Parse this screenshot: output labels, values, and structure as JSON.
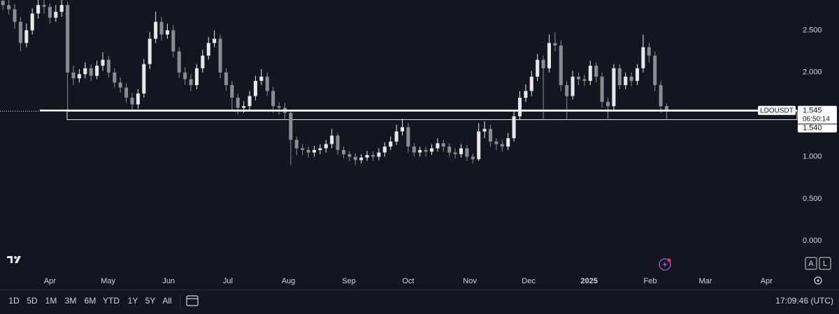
{
  "chart_data": {
    "type": "candlestick",
    "symbol": "LDOUSDT",
    "ylim": [
      -0.37,
      2.86
    ],
    "yticks": [
      {
        "value": 0,
        "label": "0.000"
      },
      {
        "value": 0.5,
        "label": "0.500"
      },
      {
        "value": 1,
        "label": "1.000"
      },
      {
        "value": 1.5,
        "label": "1.500"
      },
      {
        "value": 2,
        "label": "2.000"
      },
      {
        "value": 2.5,
        "label": "2.500"
      }
    ],
    "xlim": [
      -0.5,
      135.2
    ],
    "xticks": [
      {
        "value": 8,
        "label": "Apr"
      },
      {
        "value": 17.9,
        "label": "May"
      },
      {
        "value": 28.2,
        "label": "Jun"
      },
      {
        "value": 38.3,
        "label": "Jul"
      },
      {
        "value": 48.6,
        "label": "Aug"
      },
      {
        "value": 58.9,
        "label": "Sep"
      },
      {
        "value": 69,
        "label": "Oct"
      },
      {
        "value": 79.5,
        "label": "Nov"
      },
      {
        "value": 89.5,
        "label": "Dec"
      },
      {
        "value": 99.8,
        "label": "2025"
      },
      {
        "value": 110.2,
        "label": "Feb"
      },
      {
        "value": 119.6,
        "label": "Mar"
      },
      {
        "value": 130,
        "label": "Apr"
      }
    ],
    "up_color": "#e8e8ea",
    "down_color": "#8a8c93",
    "open": [
      2.85,
      2.8,
      2.75,
      2.6,
      2.35,
      2.5,
      2.7,
      2.8,
      2.78,
      2.65,
      2.72,
      2.8,
      2.0,
      1.93,
      1.98,
      2.05,
      1.96,
      2.08,
      2.15,
      2.0,
      1.88,
      1.82,
      1.7,
      1.62,
      1.75,
      2.1,
      2.4,
      2.6,
      2.45,
      2.5,
      2.25,
      2.0,
      1.92,
      1.85,
      2.05,
      2.2,
      2.35,
      2.4,
      2.0,
      1.85,
      1.7,
      1.58,
      1.6,
      1.72,
      1.9,
      1.95,
      1.78,
      1.6,
      1.58,
      1.52,
      1.2,
      1.1,
      1.08,
      1.05,
      1.08,
      1.1,
      1.15,
      1.25,
      1.08,
      1.03,
      1.0,
      0.96,
      0.99,
      1.02,
      1.0,
      1.05,
      1.12,
      1.18,
      1.3,
      1.35,
      1.12,
      1.05,
      1.08,
      1.06,
      1.1,
      1.16,
      1.12,
      1.05,
      1.03,
      1.1,
      1.0,
      0.97,
      1.3,
      1.33,
      1.18,
      1.15,
      1.12,
      1.22,
      1.48,
      1.7,
      1.78,
      1.95,
      2.15,
      2.05,
      2.35,
      2.32,
      1.85,
      1.72,
      1.95,
      1.92,
      1.9,
      2.08,
      1.95,
      1.65,
      1.6,
      2.05,
      1.85,
      1.95,
      1.9,
      2.05,
      2.3,
      2.2,
      1.85,
      1.6
    ],
    "high": [
      2.9,
      2.86,
      2.81,
      2.66,
      2.58,
      2.76,
      2.86,
      2.86,
      2.82,
      2.8,
      2.88,
      2.84,
      2.08,
      2.04,
      2.12,
      2.1,
      2.14,
      2.24,
      2.2,
      2.05,
      1.94,
      1.87,
      1.76,
      1.8,
      2.16,
      2.48,
      2.72,
      2.66,
      2.58,
      2.56,
      2.3,
      2.06,
      1.98,
      2.1,
      2.27,
      2.42,
      2.5,
      2.45,
      2.05,
      1.9,
      1.75,
      1.66,
      1.78,
      1.96,
      2.04,
      2.0,
      1.83,
      1.65,
      1.64,
      1.55,
      1.24,
      1.15,
      1.12,
      1.13,
      1.15,
      1.2,
      1.33,
      1.28,
      1.12,
      1.07,
      1.04,
      1.03,
      1.07,
      1.06,
      1.1,
      1.17,
      1.24,
      1.38,
      1.45,
      1.4,
      1.16,
      1.12,
      1.12,
      1.15,
      1.22,
      1.2,
      1.16,
      1.1,
      1.15,
      1.14,
      1.04,
      1.4,
      1.42,
      1.38,
      1.22,
      1.2,
      1.28,
      1.55,
      1.78,
      1.86,
      2.02,
      2.22,
      2.2,
      2.45,
      2.48,
      2.38,
      1.9,
      2.02,
      2.0,
      1.97,
      2.14,
      2.12,
      2.0,
      1.7,
      2.1,
      2.1,
      2.0,
      2.0,
      2.1,
      2.45,
      2.35,
      2.25,
      1.9,
      1.63
    ],
    "low": [
      2.74,
      2.69,
      2.52,
      2.25,
      2.3,
      2.45,
      2.64,
      2.7,
      2.58,
      2.6,
      2.66,
      1.55,
      1.85,
      1.88,
      1.93,
      1.9,
      1.92,
      2.02,
      1.94,
      1.82,
      1.76,
      1.64,
      1.55,
      1.57,
      1.7,
      2.04,
      2.35,
      2.38,
      2.4,
      2.18,
      1.94,
      1.85,
      1.78,
      1.8,
      2.0,
      2.15,
      2.3,
      1.93,
      1.78,
      1.55,
      1.5,
      1.52,
      1.55,
      1.67,
      1.85,
      1.72,
      1.52,
      1.5,
      1.45,
      0.9,
      1.02,
      1.02,
      0.99,
      1.0,
      1.03,
      1.05,
      1.1,
      1.02,
      0.98,
      0.95,
      0.9,
      0.92,
      0.95,
      0.95,
      0.96,
      1.0,
      1.08,
      1.14,
      1.25,
      1.05,
      1.0,
      1.0,
      1.0,
      1.02,
      1.06,
      1.06,
      1.0,
      0.98,
      0.99,
      0.95,
      0.92,
      0.95,
      1.22,
      1.12,
      1.08,
      1.06,
      1.08,
      1.18,
      1.44,
      1.65,
      1.72,
      1.9,
      1.44,
      2.0,
      2.25,
      1.78,
      1.44,
      1.68,
      1.85,
      1.84,
      1.85,
      1.88,
      1.58,
      1.44,
      1.55,
      1.8,
      1.8,
      1.84,
      1.85,
      2.0,
      2.12,
      1.78,
      1.52,
      1.44
    ],
    "close": [
      2.8,
      2.75,
      2.6,
      2.35,
      2.5,
      2.7,
      2.8,
      2.78,
      2.65,
      2.72,
      2.8,
      2.0,
      1.93,
      1.98,
      2.05,
      1.96,
      2.08,
      2.15,
      2.0,
      1.88,
      1.82,
      1.7,
      1.62,
      1.75,
      2.1,
      2.4,
      2.6,
      2.45,
      2.5,
      2.25,
      2.0,
      1.92,
      1.85,
      2.05,
      2.2,
      2.35,
      2.4,
      2.0,
      1.85,
      1.7,
      1.58,
      1.6,
      1.72,
      1.9,
      1.95,
      1.78,
      1.6,
      1.58,
      1.52,
      1.2,
      1.1,
      1.08,
      1.05,
      1.08,
      1.1,
      1.15,
      1.25,
      1.08,
      1.03,
      1.0,
      0.96,
      0.99,
      1.02,
      1.0,
      1.05,
      1.12,
      1.18,
      1.3,
      1.35,
      1.12,
      1.05,
      1.08,
      1.06,
      1.1,
      1.16,
      1.12,
      1.05,
      1.03,
      1.1,
      1.0,
      0.97,
      1.3,
      1.33,
      1.18,
      1.15,
      1.12,
      1.22,
      1.48,
      1.7,
      1.78,
      1.95,
      2.15,
      2.05,
      2.35,
      2.32,
      1.85,
      1.72,
      1.95,
      1.92,
      1.9,
      2.08,
      1.95,
      1.65,
      1.6,
      2.05,
      1.85,
      1.95,
      1.9,
      2.05,
      2.3,
      2.2,
      1.85,
      1.6,
      1.545
    ],
    "last_price": 1.545,
    "countdown": "06:50:14",
    "hline": {
      "value": 1.54,
      "label": "1.540"
    },
    "box_bottom": 1.44
  },
  "toolbar": {
    "ranges": [
      "1D",
      "5D",
      "1M",
      "3M",
      "6M",
      "YTD",
      "1Y",
      "5Y",
      "All"
    ],
    "clock": "17:09:46 (UTC)",
    "scale_buttons": [
      "A",
      "L"
    ]
  }
}
